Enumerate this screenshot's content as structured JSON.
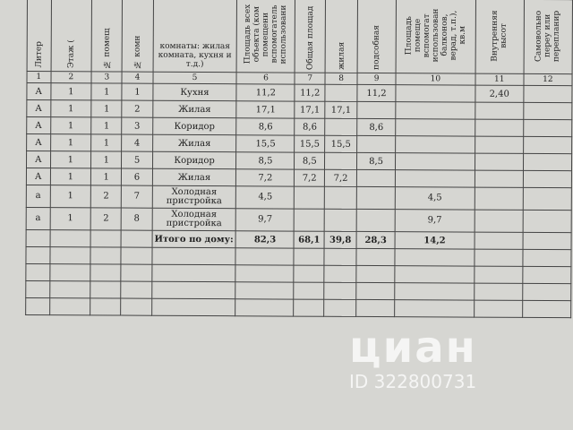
{
  "table": {
    "header": [
      "Литер",
      "Этаж (",
      "№ помещ",
      "№ комн",
      "комнаты: жилая комната, кухня и т.д.)",
      "Площадь всех объекта (ком помещени вспомогатель использовани",
      "Общая площад",
      "жилая",
      "подсобная",
      "Площадь помеще вспомогат использован балконов, верад, т.п.), кв.м",
      "Внутренняя высот",
      "Самовольно переу или перепланир"
    ],
    "numbers": [
      "1",
      "2",
      "3",
      "4",
      "5",
      "6",
      "7",
      "8",
      "9",
      "10",
      "11",
      "12"
    ],
    "rows": [
      [
        "А",
        "1",
        "1",
        "1",
        "Кухня",
        "11,2",
        "11,2",
        null,
        "11,2",
        null,
        "2,40",
        null
      ],
      [
        "А",
        "1",
        "1",
        "2",
        "Жилая",
        "17,1",
        "17,1",
        "17,1",
        null,
        null,
        null,
        null
      ],
      [
        "А",
        "1",
        "1",
        "3",
        "Коридор",
        "8,6",
        "8,6",
        null,
        "8,6",
        null,
        null,
        null
      ],
      [
        "А",
        "1",
        "1",
        "4",
        "Жилая",
        "15,5",
        "15,5",
        "15,5",
        null,
        null,
        null,
        null
      ],
      [
        "А",
        "1",
        "1",
        "5",
        "Коридор",
        "8,5",
        "8,5",
        null,
        "8,5",
        null,
        null,
        null
      ],
      [
        "А",
        "1",
        "1",
        "6",
        "Жилая",
        "7,2",
        "7,2",
        "7,2",
        null,
        null,
        null,
        null
      ],
      [
        "а",
        "1",
        "2",
        "7",
        "Холодная пристройка",
        "4,5",
        null,
        null,
        null,
        "4,5",
        null,
        null
      ],
      [
        "а",
        "1",
        "2",
        "8",
        "Холодная пристройка",
        "9,7",
        null,
        null,
        null,
        "9,7",
        null,
        null
      ],
      [
        null,
        null,
        null,
        null,
        "Итого по дому:",
        "82,3",
        "68,1",
        "39,8",
        "28,3",
        "14,2",
        null,
        null
      ]
    ],
    "empty_rows": 4
  },
  "watermark": {
    "brand": "циан",
    "id": "ID 322800731"
  }
}
